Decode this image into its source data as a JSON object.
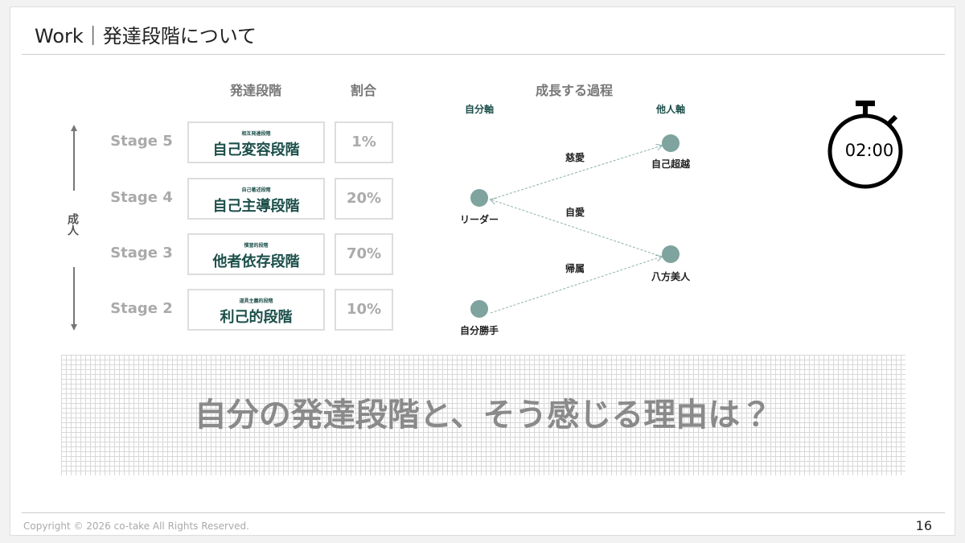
{
  "header": {
    "title": "Work｜発達段階について"
  },
  "table": {
    "headers": [
      "発達段階",
      "割合"
    ],
    "side_label": "成人",
    "rows": [
      {
        "stage": "Stage 5",
        "note": "相互発達段階",
        "name": "自己変容段階",
        "ratio": "1%"
      },
      {
        "stage": "Stage 4",
        "note": "自己著述段階",
        "name": "自己主導段階",
        "ratio": "20%"
      },
      {
        "stage": "Stage 3",
        "note": "慣習的段階",
        "name": "他者依存段階",
        "ratio": "70%"
      },
      {
        "stage": "Stage 2",
        "note": "道具主義的段階",
        "name": "利己的段階",
        "ratio": "10%"
      }
    ]
  },
  "diagram": {
    "title": "成長する過程",
    "left_axis": "自分軸",
    "right_axis": "他人軸",
    "nodes": [
      "自己超越",
      "リーダー",
      "八方美人",
      "自分勝手"
    ],
    "edges": [
      "慈愛",
      "自愛",
      "帰属"
    ]
  },
  "timer": "02:00",
  "question": "自分の発達段階と、そう感じる理由は？",
  "footer": {
    "copyright": "Copyright © 2026 co-take All Rights Reserved.",
    "page": "16"
  }
}
